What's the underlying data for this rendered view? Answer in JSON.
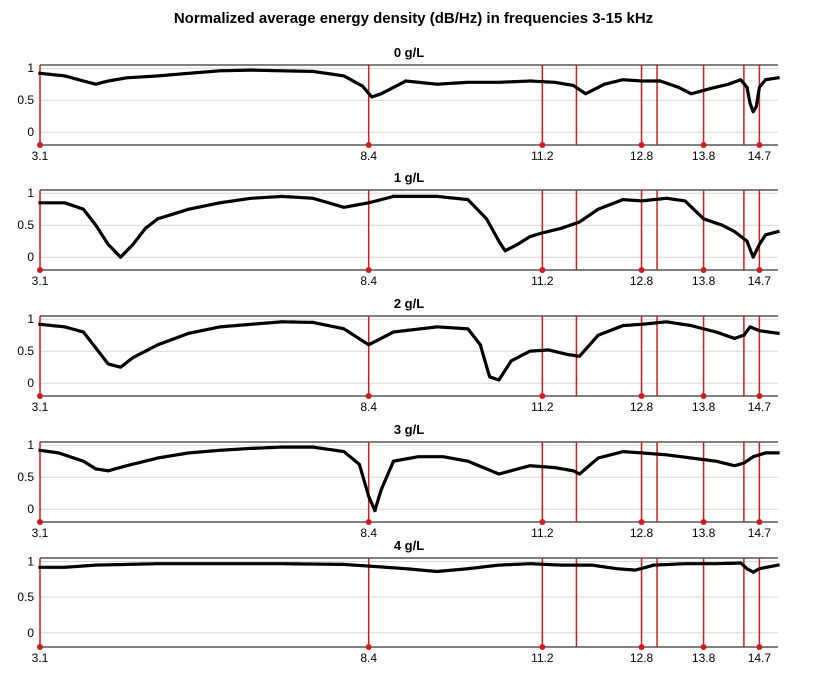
{
  "title": "Normalized average energy density (dB/Hz) in frequencies 3-15 kHz",
  "colors": {
    "curve": "#000000",
    "marker_line": "#d01c1c",
    "axis": "#000000",
    "grid": "#d8d8d8"
  },
  "chart_data": [
    {
      "type": "line",
      "title": "0 g/L",
      "xlim": [
        3.1,
        15.0
      ],
      "ylim": [
        -0.2,
        1.05
      ],
      "yticks": [
        0,
        0.5,
        1
      ],
      "ytick_labels": [
        "0",
        "0.5",
        "1"
      ],
      "xtick_labels": [
        "3.1",
        "8.4",
        "11.2",
        "12.8",
        "13.8",
        "14.7"
      ],
      "markers": {
        "labeled": [
          3.1,
          8.4,
          11.2,
          12.8,
          13.8,
          14.7
        ],
        "unlabeled": [
          11.75,
          13.05,
          14.45
        ]
      },
      "series": [
        {
          "x": [
            3.1,
            3.5,
            3.8,
            4.0,
            4.2,
            4.5,
            5.0,
            5.5,
            6.0,
            6.5,
            7.0,
            7.5,
            8.0,
            8.3,
            8.45,
            8.6,
            9.0,
            9.5,
            10.0,
            10.5,
            11.0,
            11.4,
            11.7,
            11.9,
            12.2,
            12.5,
            12.8,
            13.1,
            13.4,
            13.6,
            13.9,
            14.2,
            14.4,
            14.5,
            14.55,
            14.6,
            14.65,
            14.7,
            14.8,
            15.0
          ],
          "y": [
            0.92,
            0.88,
            0.8,
            0.75,
            0.8,
            0.85,
            0.88,
            0.92,
            0.96,
            0.97,
            0.96,
            0.95,
            0.88,
            0.72,
            0.55,
            0.6,
            0.8,
            0.75,
            0.78,
            0.78,
            0.8,
            0.78,
            0.73,
            0.6,
            0.75,
            0.82,
            0.8,
            0.8,
            0.7,
            0.6,
            0.68,
            0.75,
            0.82,
            0.7,
            0.45,
            0.32,
            0.4,
            0.7,
            0.82,
            0.85
          ]
        }
      ]
    },
    {
      "type": "line",
      "title": "1 g/L",
      "xlim": [
        3.1,
        15.0
      ],
      "ylim": [
        -0.2,
        1.05
      ],
      "yticks": [
        0,
        0.5,
        1
      ],
      "ytick_labels": [
        "0",
        "0.5",
        "1"
      ],
      "xtick_labels": [
        "3.1",
        "8.4",
        "11.2",
        "12.8",
        "13.8",
        "14.7"
      ],
      "markers": {
        "labeled": [
          3.1,
          8.4,
          11.2,
          12.8,
          13.8,
          14.7
        ],
        "unlabeled": [
          11.75,
          13.05,
          14.45
        ]
      },
      "series": [
        {
          "x": [
            3.1,
            3.5,
            3.8,
            4.0,
            4.2,
            4.4,
            4.6,
            4.8,
            5.0,
            5.5,
            6.0,
            6.5,
            7.0,
            7.5,
            8.0,
            8.4,
            8.8,
            9.5,
            10.0,
            10.3,
            10.5,
            10.6,
            10.8,
            11.0,
            11.2,
            11.5,
            11.8,
            12.1,
            12.5,
            12.8,
            13.2,
            13.5,
            13.8,
            14.1,
            14.3,
            14.5,
            14.6,
            14.7,
            14.8,
            15.0
          ],
          "y": [
            0.85,
            0.85,
            0.75,
            0.5,
            0.2,
            0.0,
            0.2,
            0.45,
            0.6,
            0.75,
            0.85,
            0.92,
            0.95,
            0.92,
            0.78,
            0.85,
            0.95,
            0.95,
            0.9,
            0.6,
            0.25,
            0.1,
            0.2,
            0.32,
            0.38,
            0.45,
            0.55,
            0.75,
            0.9,
            0.88,
            0.92,
            0.88,
            0.6,
            0.5,
            0.4,
            0.25,
            0.0,
            0.2,
            0.35,
            0.4
          ]
        }
      ]
    },
    {
      "type": "line",
      "title": "2 g/L",
      "xlim": [
        3.1,
        15.0
      ],
      "ylim": [
        -0.2,
        1.05
      ],
      "yticks": [
        0,
        0.5,
        1
      ],
      "ytick_labels": [
        "0",
        "0.5",
        "1"
      ],
      "xtick_labels": [
        "3.1",
        "8.4",
        "11.2",
        "12.8",
        "13.8",
        "14.7"
      ],
      "markers": {
        "labeled": [
          3.1,
          8.4,
          11.2,
          12.8,
          13.8,
          14.7
        ],
        "unlabeled": [
          11.75,
          13.05,
          14.45
        ]
      },
      "series": [
        {
          "x": [
            3.1,
            3.5,
            3.8,
            4.0,
            4.2,
            4.4,
            4.6,
            5.0,
            5.5,
            6.0,
            6.5,
            7.0,
            7.5,
            8.0,
            8.4,
            8.8,
            9.5,
            10.0,
            10.2,
            10.35,
            10.5,
            10.7,
            11.0,
            11.3,
            11.6,
            11.8,
            12.1,
            12.5,
            12.8,
            13.2,
            13.6,
            14.0,
            14.3,
            14.45,
            14.55,
            14.7,
            15.0
          ],
          "y": [
            0.92,
            0.88,
            0.8,
            0.55,
            0.3,
            0.25,
            0.4,
            0.6,
            0.78,
            0.88,
            0.92,
            0.96,
            0.95,
            0.85,
            0.6,
            0.8,
            0.88,
            0.85,
            0.6,
            0.1,
            0.05,
            0.35,
            0.5,
            0.52,
            0.45,
            0.42,
            0.75,
            0.9,
            0.92,
            0.96,
            0.9,
            0.8,
            0.7,
            0.75,
            0.88,
            0.82,
            0.78
          ]
        }
      ]
    },
    {
      "type": "line",
      "title": "3 g/L",
      "xlim": [
        3.1,
        15.0
      ],
      "ylim": [
        -0.2,
        1.05
      ],
      "yticks": [
        0,
        0.5,
        1
      ],
      "ytick_labels": [
        "0",
        "0.5",
        "1"
      ],
      "xtick_labels": [
        "3.1",
        "8.4",
        "11.2",
        "12.8",
        "13.8",
        "14.7"
      ],
      "markers": {
        "labeled": [
          3.1,
          8.4,
          11.2,
          12.8,
          13.8,
          14.7
        ],
        "unlabeled": [
          11.75,
          13.05,
          14.45
        ]
      },
      "series": [
        {
          "x": [
            3.1,
            3.4,
            3.8,
            4.0,
            4.2,
            4.5,
            5.0,
            5.5,
            6.0,
            6.5,
            7.0,
            7.5,
            8.0,
            8.25,
            8.4,
            8.5,
            8.6,
            8.8,
            9.2,
            9.6,
            10.0,
            10.5,
            11.0,
            11.4,
            11.7,
            11.8,
            12.1,
            12.5,
            12.8,
            13.2,
            13.6,
            14.0,
            14.3,
            14.45,
            14.6,
            14.8,
            15.0
          ],
          "y": [
            0.92,
            0.88,
            0.75,
            0.63,
            0.6,
            0.68,
            0.8,
            0.88,
            0.92,
            0.95,
            0.97,
            0.97,
            0.9,
            0.7,
            0.2,
            -0.02,
            0.3,
            0.75,
            0.82,
            0.82,
            0.75,
            0.55,
            0.68,
            0.65,
            0.6,
            0.55,
            0.8,
            0.9,
            0.88,
            0.85,
            0.8,
            0.75,
            0.68,
            0.72,
            0.82,
            0.88,
            0.88
          ]
        }
      ]
    },
    {
      "type": "line",
      "title": "4 g/L",
      "xlim": [
        3.1,
        15.0
      ],
      "ylim": [
        -0.2,
        1.05
      ],
      "yticks": [
        0,
        0.5,
        1
      ],
      "ytick_labels": [
        "0",
        "0.5",
        "1"
      ],
      "xtick_labels": [
        "3.1",
        "8.4",
        "11.2",
        "12.8",
        "13.8",
        "14.7"
      ],
      "markers": {
        "labeled": [
          3.1,
          8.4,
          11.2,
          12.8,
          13.8,
          14.7
        ],
        "unlabeled": [
          11.75,
          13.05,
          14.45
        ]
      },
      "series": [
        {
          "x": [
            3.1,
            3.5,
            4.0,
            5.0,
            6.0,
            7.0,
            8.0,
            8.5,
            9.0,
            9.5,
            10.0,
            10.5,
            11.0,
            11.5,
            12.0,
            12.4,
            12.7,
            13.0,
            13.5,
            14.0,
            14.4,
            14.5,
            14.6,
            14.7,
            15.0
          ],
          "y": [
            0.92,
            0.92,
            0.95,
            0.97,
            0.97,
            0.97,
            0.96,
            0.93,
            0.9,
            0.86,
            0.9,
            0.95,
            0.97,
            0.95,
            0.95,
            0.9,
            0.88,
            0.95,
            0.97,
            0.97,
            0.98,
            0.9,
            0.85,
            0.9,
            0.95
          ]
        }
      ]
    }
  ]
}
